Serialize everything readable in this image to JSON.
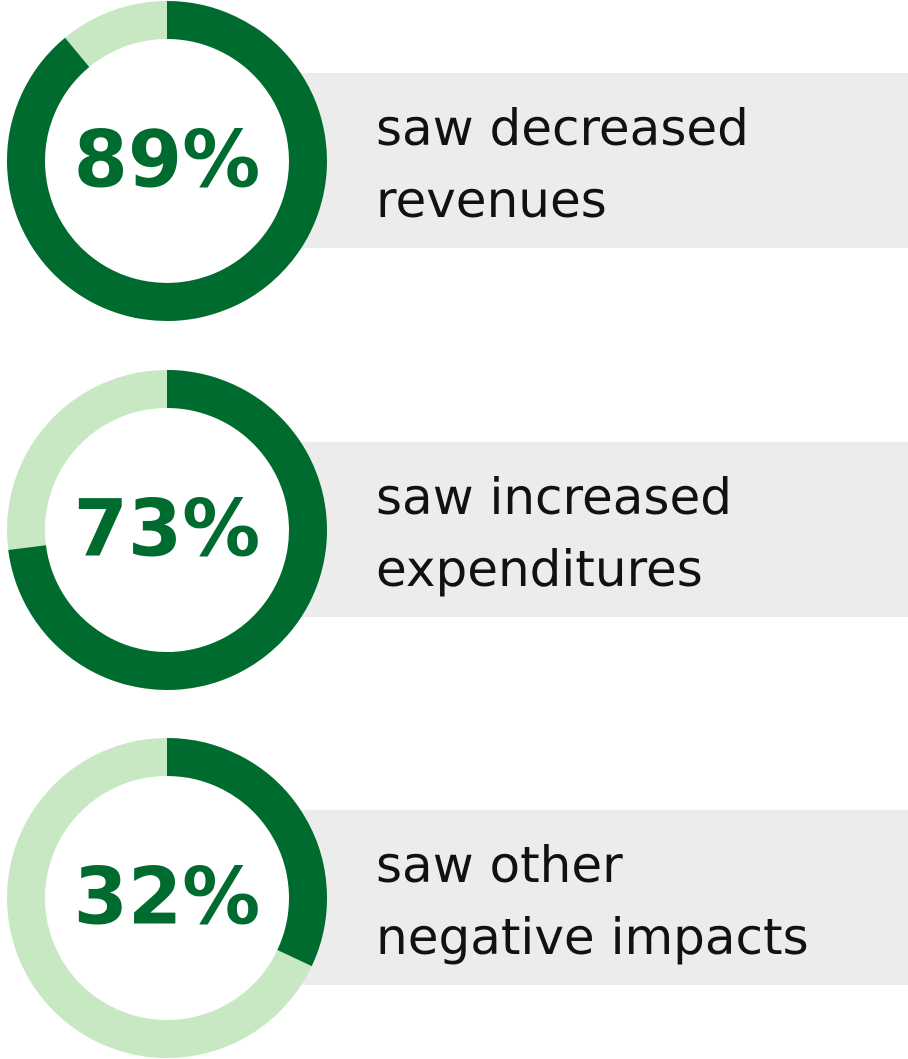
{
  "chart_data": [
    {
      "type": "donut",
      "values": [
        89
      ],
      "value_labels": [
        "89%"
      ],
      "label": [
        "saw decreased",
        "revenues"
      ],
      "color": "#006b2f",
      "track_color": "#c8e8c4"
    },
    {
      "type": "donut",
      "values": [
        73
      ],
      "value_labels": [
        "73%"
      ],
      "label": [
        "saw increased",
        "expenditures"
      ],
      "color": "#006b2f",
      "track_color": "#c8e8c4"
    },
    {
      "type": "donut",
      "values": [
        32
      ],
      "value_labels": [
        "32%"
      ],
      "label": [
        "saw other",
        "negative impacts"
      ],
      "color": "#006b2f",
      "track_color": "#c8e8c4"
    }
  ]
}
